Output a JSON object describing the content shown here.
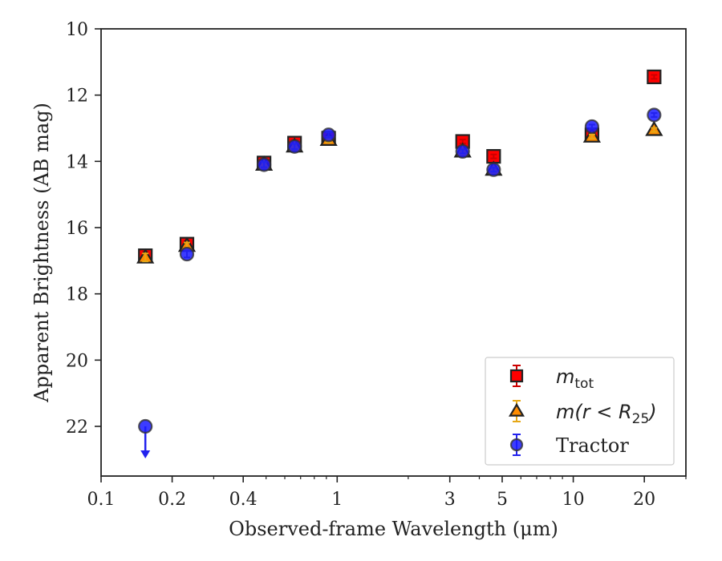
{
  "chart_data": {
    "type": "scatter",
    "xlabel": "Observed-frame Wavelength (μm)",
    "ylabel": "Apparent Brightness (AB mag)",
    "xscale": "log",
    "xlim": [
      0.1,
      30
    ],
    "ylim": [
      23.5,
      10
    ],
    "y_inverted": true,
    "xticks": [
      {
        "value": 0.1,
        "label": "0.1"
      },
      {
        "value": 0.2,
        "label": "0.2"
      },
      {
        "value": 0.4,
        "label": "0.4"
      },
      {
        "value": 1,
        "label": "1"
      },
      {
        "value": 3,
        "label": "3"
      },
      {
        "value": 5,
        "label": "5"
      },
      {
        "value": 10,
        "label": "10"
      },
      {
        "value": 20,
        "label": "20"
      }
    ],
    "yticks": [
      {
        "value": 10,
        "label": "10"
      },
      {
        "value": 12,
        "label": "12"
      },
      {
        "value": 14,
        "label": "14"
      },
      {
        "value": 16,
        "label": "16"
      },
      {
        "value": 18,
        "label": "18"
      },
      {
        "value": 20,
        "label": "20"
      },
      {
        "value": 22,
        "label": "22"
      }
    ],
    "grid": false,
    "legend_position": "lower-right",
    "series": [
      {
        "name": "m_tot",
        "legend_main": "m",
        "legend_sub": "tot",
        "marker": "square",
        "color": "#ff0000",
        "edge_color": "#222222",
        "error_color": "#cc0000",
        "x": [
          0.154,
          0.231,
          0.49,
          0.66,
          0.92,
          3.4,
          4.6,
          12.0,
          22.0
        ],
        "y": [
          16.85,
          16.5,
          14.05,
          13.45,
          13.3,
          13.4,
          13.85,
          13.2,
          11.45
        ],
        "yerr": [
          0.12,
          0.1,
          0.08,
          0.08,
          0.08,
          0.06,
          0.06,
          0.06,
          0.06
        ]
      },
      {
        "name": "m(r < R25)",
        "legend_main": "m(r < R",
        "legend_sub": "25",
        "legend_tail": ")",
        "marker": "triangle",
        "color": "#ff8c00",
        "edge_color": "#222222",
        "error_color": "#e6a817",
        "x": [
          0.154,
          0.231,
          0.49,
          0.66,
          0.92,
          3.4,
          4.6,
          12.0,
          22.0
        ],
        "y": [
          16.9,
          16.55,
          14.1,
          13.55,
          13.35,
          13.7,
          14.25,
          13.25,
          13.05
        ],
        "yerr": [
          0.12,
          0.1,
          0.08,
          0.08,
          0.08,
          0.06,
          0.06,
          0.06,
          0.06
        ]
      },
      {
        "name": "Tractor",
        "marker": "circle",
        "color": "#1a1aff",
        "edge_color": "#333333",
        "error_color": "#2222ee",
        "x": [
          0.154,
          0.231,
          0.49,
          0.66,
          0.92,
          3.4,
          4.6,
          12.0,
          22.0
        ],
        "y": [
          22.0,
          16.8,
          14.1,
          13.55,
          13.2,
          13.7,
          14.25,
          12.95,
          12.6
        ],
        "yerr": [
          0.0,
          0.1,
          0.08,
          0.08,
          0.08,
          0.06,
          0.06,
          0.06,
          0.06
        ],
        "upper_limit": [
          true,
          false,
          false,
          false,
          false,
          false,
          false,
          false,
          false
        ]
      }
    ]
  }
}
